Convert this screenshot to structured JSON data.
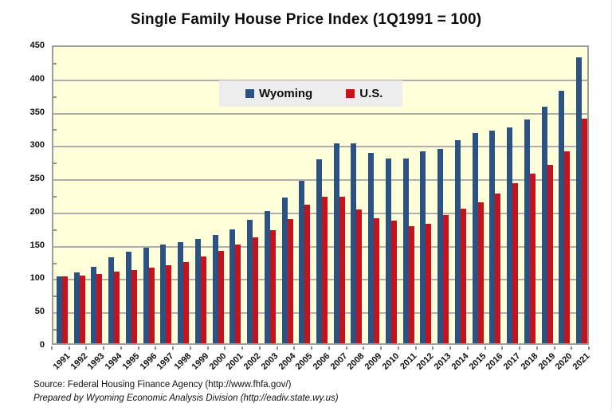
{
  "title": "Single Family House Price Index (1Q1991 = 100)",
  "legend": {
    "series1_label": "Wyoming",
    "series2_label": "U.S."
  },
  "footer": {
    "source": "Source: Federal Housing Finance Agency (http://www.fhfa.gov/)",
    "prepared": "Prepared by Wyoming Economic Analysis Division (http://eadiv.state.wy.us)"
  },
  "colors": {
    "wyoming_bar": "#2A5283",
    "us_bar": "#C5121C",
    "plot_background": "#FFFFD9",
    "gridline": "#AEAEAE",
    "legend_background": "#EDEDED"
  },
  "chart_data": {
    "type": "bar",
    "title": "Single Family House Price Index (1Q1991 = 100)",
    "categories": [
      "1991",
      "1992",
      "1993",
      "1994",
      "1995",
      "1996",
      "1997",
      "1998",
      "1999",
      "2000",
      "2001",
      "2002",
      "2003",
      "2004",
      "2005",
      "2006",
      "2007",
      "2008",
      "2009",
      "2010",
      "2011",
      "2012",
      "2013",
      "2014",
      "2015",
      "2016",
      "2017",
      "2018",
      "2019",
      "2020",
      "2021"
    ],
    "series": [
      {
        "name": "Wyoming",
        "color": "#2A5283",
        "values": [
          101,
          107,
          115,
          129,
          138,
          144,
          148,
          152,
          157,
          163,
          171,
          186,
          199,
          219,
          244,
          276,
          300,
          301,
          286,
          278,
          278,
          288,
          292,
          305,
          316,
          319,
          324,
          336,
          355,
          379,
          430
        ]
      },
      {
        "name": "U.S.",
        "color": "#C5121C",
        "values": [
          100,
          102,
          104,
          108,
          110,
          114,
          117,
          122,
          130,
          139,
          148,
          159,
          170,
          187,
          208,
          220,
          220,
          201,
          188,
          184,
          176,
          180,
          193,
          202,
          212,
          225,
          240,
          255,
          268,
          288,
          338
        ]
      }
    ],
    "xlabel": "",
    "ylabel": "",
    "ylim": [
      0,
      450
    ],
    "ytick_step": 50,
    "yticks": [
      0,
      50,
      100,
      150,
      200,
      250,
      300,
      350,
      400,
      450
    ],
    "grid": true,
    "legend_position": "top-center-inside",
    "plot_background": "#FFFFD9"
  }
}
